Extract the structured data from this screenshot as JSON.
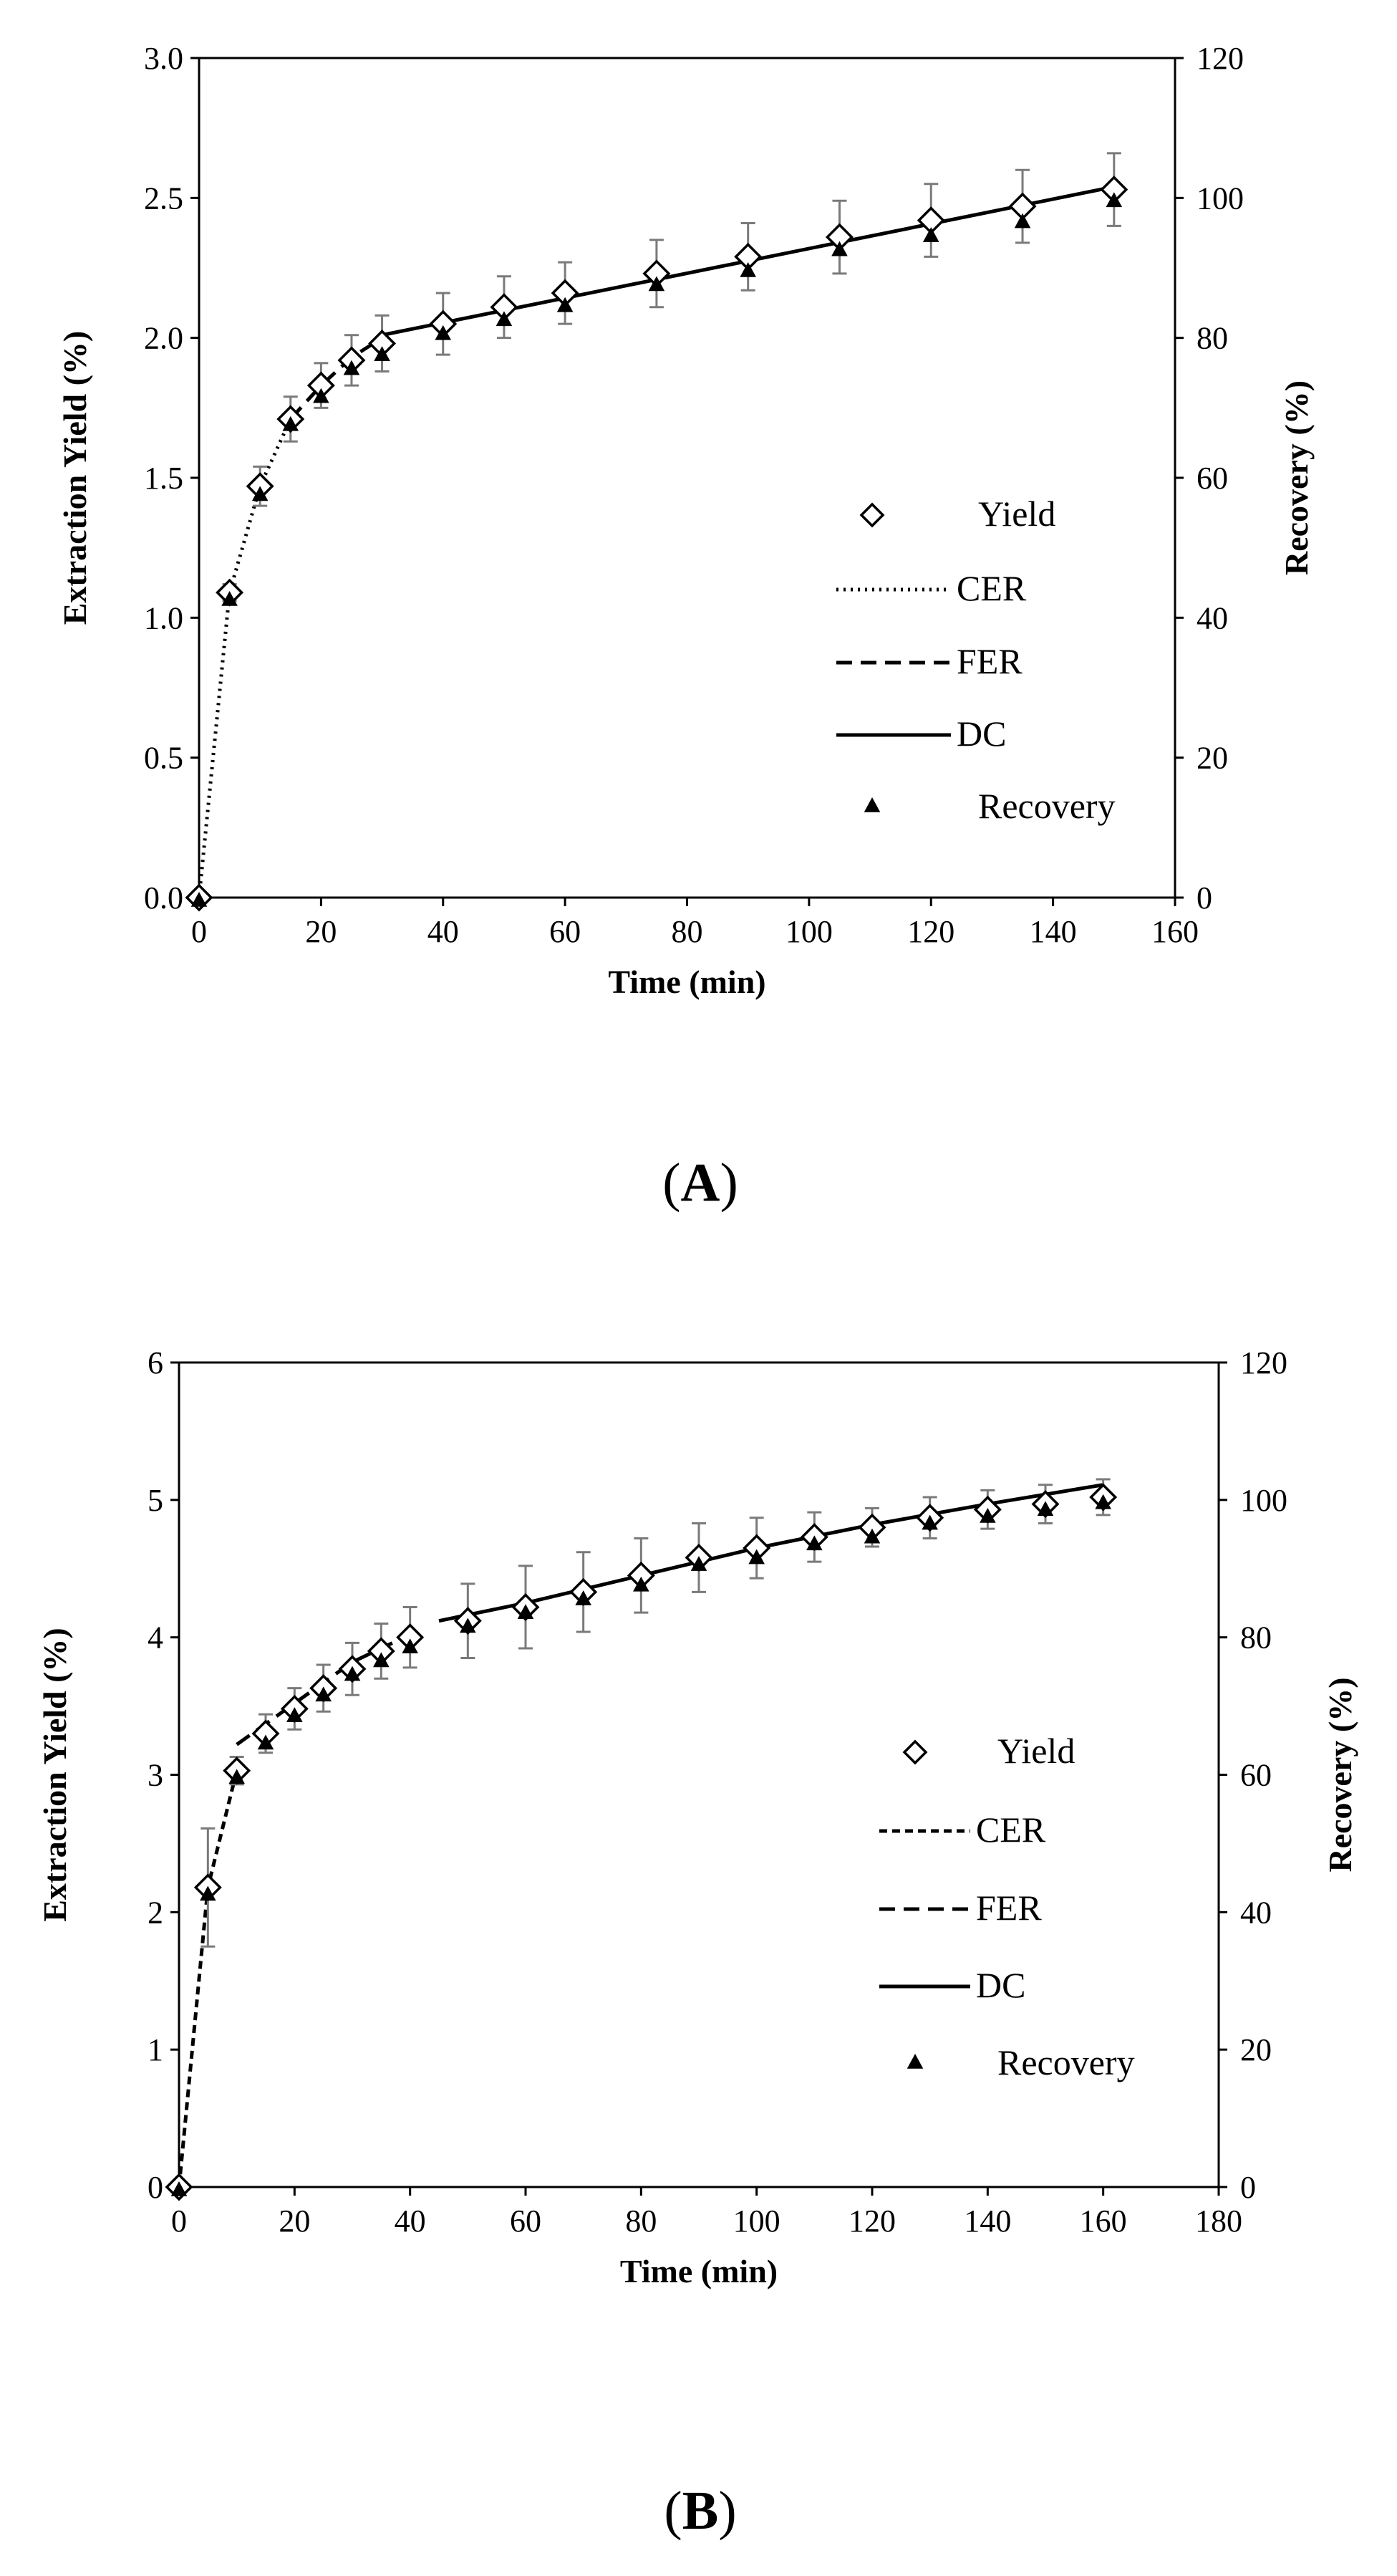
{
  "figure": {
    "panel_a_label": {
      "open": "(",
      "letter": "A",
      "close": ")"
    },
    "panel_b_label": {
      "open": "(",
      "letter": "B",
      "close": ")"
    }
  },
  "colors": {
    "ink": "#000000",
    "error_bar": "#7a7a7a",
    "background": "#ffffff"
  },
  "chart_data": [
    {
      "type": "scatter",
      "panel": "A",
      "xlabel": "Time (min)",
      "ylabel": "Extraction Yield (%)",
      "y2label": "Recovery (%)",
      "xlim": [
        0,
        160
      ],
      "xticks": [
        0,
        20,
        40,
        60,
        80,
        100,
        120,
        140,
        160
      ],
      "ylim": [
        0,
        3.0
      ],
      "yticks": [
        "0.0",
        "0.5",
        "1.0",
        "1.5",
        "2.0",
        "2.5",
        "3.0"
      ],
      "y2lim": [
        0,
        120
      ],
      "y2ticks": [
        0,
        20,
        40,
        60,
        80,
        100,
        120
      ],
      "grid": false,
      "legend_position": "right",
      "legend": [
        "Yield",
        "CER",
        "FER",
        "DC",
        "Recovery"
      ],
      "yield": {
        "x": [
          0,
          5,
          10,
          15,
          20,
          25,
          30,
          40,
          50,
          60,
          75,
          90,
          105,
          120,
          135,
          150
        ],
        "y": [
          0.0,
          1.09,
          1.47,
          1.71,
          1.83,
          1.92,
          1.98,
          2.05,
          2.11,
          2.16,
          2.23,
          2.29,
          2.36,
          2.42,
          2.47,
          2.53
        ],
        "err": [
          0.0,
          0.03,
          0.07,
          0.08,
          0.08,
          0.09,
          0.1,
          0.11,
          0.11,
          0.11,
          0.12,
          0.12,
          0.13,
          0.13,
          0.13,
          0.13
        ]
      },
      "recovery": {
        "x": [
          0,
          5,
          10,
          15,
          20,
          25,
          30,
          40,
          50,
          60,
          75,
          90,
          105,
          120,
          135,
          150
        ],
        "y": [
          0,
          43,
          58,
          68,
          72,
          76,
          78,
          81,
          83,
          85,
          88,
          90,
          93,
          95,
          97,
          100
        ]
      },
      "cer": {
        "x": [
          0,
          5,
          10,
          15
        ],
        "y": [
          0.0,
          1.09,
          1.47,
          1.71
        ]
      },
      "fer": {
        "x": [
          15,
          20,
          25,
          30
        ],
        "y": [
          1.71,
          1.83,
          1.93,
          2.0
        ]
      },
      "dc": {
        "x": [
          30,
          150
        ],
        "y": [
          2.01,
          2.54
        ]
      }
    },
    {
      "type": "scatter",
      "panel": "B",
      "xlabel": "Time (min)",
      "ylabel": "Extraction Yield (%)",
      "y2label": "Recovery (%)",
      "xlim": [
        0,
        180
      ],
      "xticks": [
        0,
        20,
        40,
        60,
        80,
        100,
        120,
        140,
        160,
        180
      ],
      "ylim": [
        0,
        6
      ],
      "yticks": [
        "0",
        "1",
        "2",
        "3",
        "4",
        "5",
        "6"
      ],
      "y2lim": [
        0,
        120
      ],
      "y2ticks": [
        0,
        20,
        40,
        60,
        80,
        100,
        120
      ],
      "grid": false,
      "legend_position": "right",
      "legend": [
        "Yield",
        "CER",
        "FER",
        "DC",
        "Recovery"
      ],
      "yield": {
        "x": [
          0,
          5,
          10,
          15,
          20,
          25,
          30,
          35,
          40,
          50,
          60,
          70,
          80,
          90,
          100,
          110,
          120,
          130,
          140,
          150,
          160
        ],
        "y": [
          0.0,
          2.18,
          3.03,
          3.3,
          3.48,
          3.63,
          3.77,
          3.9,
          4.0,
          4.12,
          4.22,
          4.33,
          4.45,
          4.58,
          4.65,
          4.73,
          4.8,
          4.87,
          4.93,
          4.97,
          5.02
        ],
        "err": [
          0.0,
          0.43,
          0.1,
          0.14,
          0.15,
          0.17,
          0.19,
          0.2,
          0.22,
          0.27,
          0.3,
          0.29,
          0.27,
          0.25,
          0.22,
          0.18,
          0.14,
          0.15,
          0.14,
          0.14,
          0.13
        ]
      },
      "recovery": {
        "x": [
          0,
          5,
          10,
          15,
          20,
          25,
          30,
          35,
          40,
          50,
          60,
          70,
          80,
          90,
          100,
          110,
          120,
          130,
          140,
          150,
          160
        ],
        "y": [
          0,
          43,
          60,
          65,
          69,
          72,
          75,
          77,
          79,
          82,
          84,
          86,
          88,
          91,
          92,
          94,
          95,
          97,
          98,
          99,
          100
        ]
      },
      "cer": {
        "x": [
          0,
          5,
          10
        ],
        "y": [
          0.0,
          2.18,
          3.03
        ]
      },
      "fer": {
        "x": [
          10,
          20,
          30,
          40
        ],
        "y": [
          3.22,
          3.52,
          3.82,
          4.02
        ]
      },
      "dc": {
        "x": [
          45,
          60,
          80,
          100,
          120,
          140,
          160
        ],
        "y": [
          4.12,
          4.25,
          4.45,
          4.65,
          4.82,
          4.97,
          5.11
        ]
      }
    }
  ]
}
